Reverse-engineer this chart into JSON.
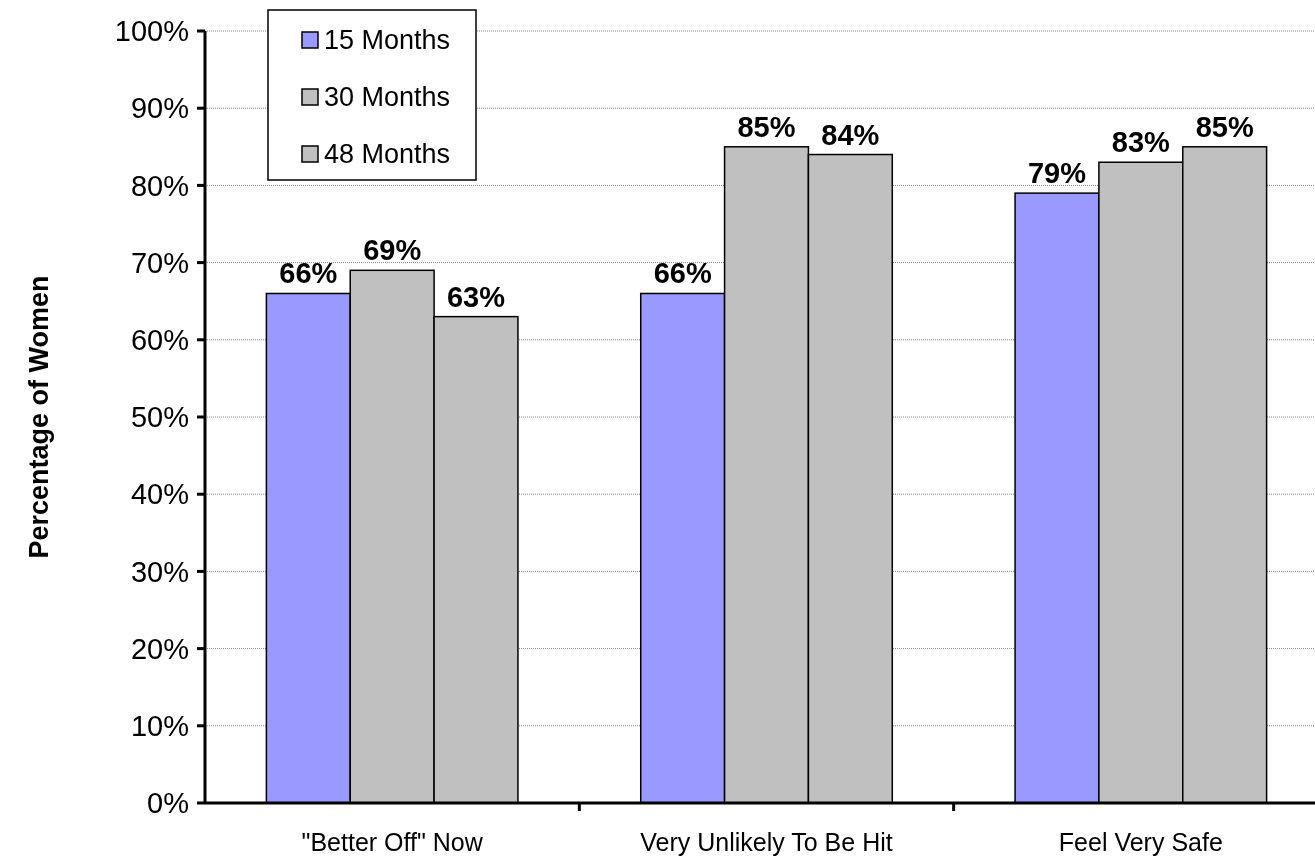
{
  "chart_data": {
    "type": "bar",
    "ylabel": "Percentage of Women",
    "categories": [
      "\"Better Off\" Now",
      "Very Unlikely To Be Hit",
      "Feel Very Safe"
    ],
    "series": [
      {
        "name": "15 Months",
        "color": "#9999ff",
        "values": [
          66,
          66,
          79
        ],
        "value_labels": [
          "66%",
          "66%",
          "79%"
        ]
      },
      {
        "name": "30 Months",
        "color": "#c0c0c0",
        "values": [
          69,
          85,
          83
        ],
        "value_labels": [
          "69%",
          "85%",
          "83%"
        ]
      },
      {
        "name": "48 Months",
        "color": "#c0c0c0",
        "values": [
          63,
          84,
          85
        ],
        "value_labels": [
          "63%",
          "84%",
          "85%"
        ]
      }
    ],
    "ylim": [
      0,
      100
    ],
    "yticks": [
      {
        "value": 0,
        "label": "0%"
      },
      {
        "value": 10,
        "label": "10%"
      },
      {
        "value": 20,
        "label": "20%"
      },
      {
        "value": 30,
        "label": "30%"
      },
      {
        "value": 40,
        "label": "40%"
      },
      {
        "value": 50,
        "label": "50%"
      },
      {
        "value": 60,
        "label": "60%"
      },
      {
        "value": 70,
        "label": "70%"
      },
      {
        "value": 80,
        "label": "80%"
      },
      {
        "value": 90,
        "label": "90%"
      },
      {
        "value": 100,
        "label": "100%"
      }
    ],
    "grid": "y",
    "legend": "top left"
  }
}
